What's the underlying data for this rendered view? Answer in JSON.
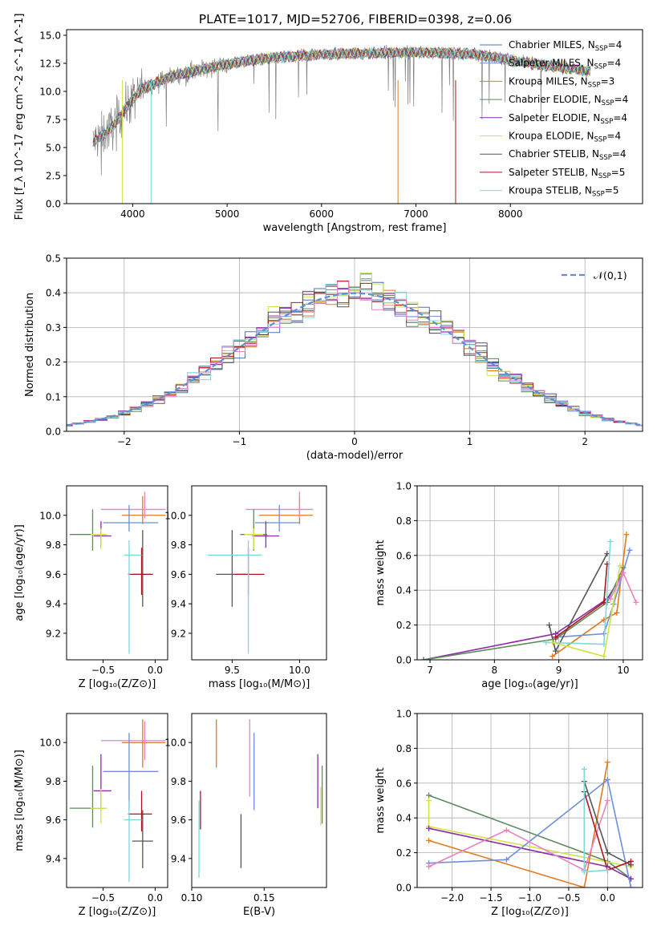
{
  "figure_title": "PLATE=1017, MJD=52706, FIBERID=0398, z=0.06",
  "colors": {
    "Chabrier MILES": "#4c72b0",
    "Salpeter MILES": "#6f8fdc",
    "Kroupa MILES": "#e07b1f",
    "Chabrier ELODIE": "#5b8a5b",
    "Salpeter ELODIE": "#8e2aa8",
    "Kroupa ELODIE": "#d2e34a",
    "Chabrier STELIB": "#555555",
    "Salpeter STELIB": "#b0151e",
    "Kroupa STELIB": "#7fd8dc",
    "pink": "#e982c0",
    "data": "#808080",
    "normal": "#5b8fd6"
  },
  "chart_data": [
    {
      "type": "line",
      "title": "PLATE=1017, MJD=52706, FIBERID=0398, z=0.06",
      "xlabel": "wavelength [Angstrom, rest frame]",
      "ylabel": "Flux [f_λ 10^-17 erg cm^-2 s^-1 A^-1]",
      "xlim": [
        3300,
        9400
      ],
      "ylim": [
        0,
        15.5
      ],
      "xticks": [
        4000,
        5000,
        6000,
        7000,
        8000
      ],
      "yticks": [
        "0.0",
        "2.5",
        "5.0",
        "7.5",
        "10.0",
        "12.5",
        "15.0"
      ],
      "grid": false,
      "legend_position": "right",
      "continuum": {
        "x": [
          3580,
          3700,
          3800,
          3900,
          4000,
          4100,
          4200,
          4400,
          4600,
          4800,
          5000,
          5200,
          5500,
          6000,
          6500,
          7000,
          7400,
          7600,
          7800,
          8000,
          8200,
          8400,
          8600,
          8850
        ],
        "y": [
          5.5,
          6.2,
          7.0,
          8.2,
          9.3,
          10.2,
          10.6,
          11.3,
          11.7,
          12.1,
          12.4,
          12.7,
          13.0,
          13.3,
          13.4,
          13.5,
          13.4,
          13.3,
          13.1,
          12.8,
          12.5,
          12.3,
          12.1,
          11.8
        ]
      },
      "series": [
        {
          "name": "Chabrier MILES",
          "nssp": 4
        },
        {
          "name": "Salpeter MILES",
          "nssp": 4
        },
        {
          "name": "Kroupa MILES",
          "nssp": 3
        },
        {
          "name": "Chabrier ELODIE",
          "nssp": 4
        },
        {
          "name": "Salpeter ELODIE",
          "nssp": 4
        },
        {
          "name": "Kroupa ELODIE",
          "nssp": 4
        },
        {
          "name": "Chabrier STELIB",
          "nssp": 4
        },
        {
          "name": "Salpeter STELIB",
          "nssp": 5
        },
        {
          "name": "Kroupa STELIB",
          "nssp": 5
        }
      ]
    },
    {
      "type": "line",
      "xlabel": "(data-model)/error",
      "ylabel": "Normed distribution",
      "xlim": [
        -2.5,
        2.5
      ],
      "ylim": [
        0,
        0.5
      ],
      "xticks": [
        "−2",
        "−1",
        "0",
        "1",
        "2"
      ],
      "yticks": [
        "0.0",
        "0.1",
        "0.2",
        "0.3",
        "0.4",
        "0.5"
      ],
      "grid": true,
      "legend_position": "top-right",
      "legend_label": "𝒩(0,1)",
      "bin_width": 0.1
    },
    {
      "type": "scatter",
      "xlabel": "Z [log₁₀(Z/Z⊙)]",
      "ylabel": "age  [log₁₀(age/yr)]",
      "xlim": [
        -0.85,
        0.12
      ],
      "ylim": [
        9.02,
        10.2
      ],
      "xticks": [
        -0.5,
        0.0
      ],
      "xtick_labels": [
        "−0.5",
        "0.0"
      ],
      "yticks": [
        9.2,
        9.4,
        9.6,
        9.8,
        10.0
      ],
      "ytick_labels": [
        "9.2",
        "9.4",
        "9.6",
        "9.8",
        "10.0"
      ],
      "points": [
        {
          "color": "Kroupa MILES",
          "x": -0.12,
          "y": 10.0,
          "xerr": [
            0.2,
            0.22
          ],
          "yerr": [
            0.06,
            0.13
          ]
        },
        {
          "color": "pink",
          "x": -0.1,
          "y": 10.04,
          "xerr": [
            0.42,
            0.2
          ],
          "yerr": [
            0.06,
            0.12
          ]
        },
        {
          "color": "Salpeter MILES",
          "x": -0.25,
          "y": 9.95,
          "xerr": [
            0.25,
            0.28
          ],
          "yerr": [
            0.06,
            0.12
          ]
        },
        {
          "color": "Chabrier ELODIE",
          "x": -0.6,
          "y": 9.87,
          "xerr": [
            0.22,
            0.12
          ],
          "yerr": [
            0.11,
            0.17
          ]
        },
        {
          "color": "Salpeter ELODIE",
          "x": -0.52,
          "y": 9.86,
          "xerr": [
            0.07,
            0.1
          ],
          "yerr": [
            0.08,
            0.1
          ]
        },
        {
          "color": "Kroupa ELODIE",
          "x": -0.52,
          "y": 9.87,
          "xerr": [
            0.1,
            0.06
          ],
          "yerr": [
            0.1,
            0.04
          ]
        },
        {
          "color": "Chabrier STELIB",
          "x": -0.12,
          "y": 9.6,
          "xerr": [
            0.1,
            0.1
          ],
          "yerr": [
            0.22,
            0.3
          ]
        },
        {
          "color": "Salpeter STELIB",
          "x": -0.13,
          "y": 9.6,
          "xerr": [
            0.13,
            0.1
          ],
          "yerr": [
            0.14,
            0.18
          ]
        },
        {
          "color": "Kroupa STELIB",
          "x": -0.25,
          "y": 9.73,
          "xerr": [
            0.05,
            0.12
          ],
          "yerr": [
            0.67,
            0.1
          ]
        }
      ]
    },
    {
      "type": "scatter",
      "xlabel": "mass [log₁₀(M/M⊙)]",
      "ylabel": "",
      "xlim": [
        9.2,
        10.2
      ],
      "ylim": [
        9.02,
        10.2
      ],
      "xticks": [
        9.5,
        10.0
      ],
      "xtick_labels": [
        "9.5",
        "10.0"
      ],
      "yticks": [
        9.2,
        9.4,
        9.6,
        9.8,
        10.0
      ],
      "ytick_labels": [
        "9.2",
        "9.4",
        "9.6",
        "9.8",
        "10.0"
      ],
      "points": [
        {
          "color": "Kroupa MILES",
          "x": 10.0,
          "y": 10.0,
          "xerr": [
            0.3,
            0.1
          ],
          "yerr": [
            0.06,
            0.13
          ]
        },
        {
          "color": "pink",
          "x": 10.0,
          "y": 10.04,
          "xerr": [
            0.4,
            0.1
          ],
          "yerr": [
            0.06,
            0.12
          ]
        },
        {
          "color": "Salpeter MILES",
          "x": 9.85,
          "y": 9.95,
          "xerr": [
            0.18,
            0.15
          ],
          "yerr": [
            0.06,
            0.12
          ]
        },
        {
          "color": "Chabrier ELODIE",
          "x": 9.66,
          "y": 9.87,
          "xerr": [
            0.1,
            0.1
          ],
          "yerr": [
            0.11,
            0.17
          ]
        },
        {
          "color": "Salpeter ELODIE",
          "x": 9.75,
          "y": 9.86,
          "xerr": [
            0.1,
            0.1
          ],
          "yerr": [
            0.08,
            0.1
          ]
        },
        {
          "color": "Kroupa ELODIE",
          "x": 9.66,
          "y": 9.87,
          "xerr": [
            0.07,
            0.07
          ],
          "yerr": [
            0.1,
            0.04
          ]
        },
        {
          "color": "Chabrier STELIB",
          "x": 9.5,
          "y": 9.6,
          "xerr": [
            0.12,
            0.12
          ],
          "yerr": [
            0.22,
            0.3
          ]
        },
        {
          "color": "Salpeter STELIB",
          "x": 9.62,
          "y": 9.6,
          "xerr": [
            0.1,
            0.12
          ],
          "yerr": [
            0.14,
            0.18
          ]
        },
        {
          "color": "Kroupa STELIB",
          "x": 9.62,
          "y": 9.73,
          "xerr": [
            0.3,
            0.1
          ],
          "yerr": [
            0.67,
            0.1
          ]
        }
      ]
    },
    {
      "type": "line",
      "xlabel": "age  [log₁₀(age/yr)]",
      "ylabel": "mass weight",
      "xlim": [
        6.8,
        10.3
      ],
      "ylim": [
        0,
        1
      ],
      "xticks": [
        7,
        8,
        9,
        10
      ],
      "xtick_labels": [
        "7",
        "8",
        "9",
        "10"
      ],
      "yticks": [
        0,
        0.2,
        0.4,
        0.6,
        0.8,
        1.0
      ],
      "ytick_labels": [
        "0.0",
        "0.2",
        "0.4",
        "0.6",
        "0.8",
        "1.0"
      ],
      "grid": true,
      "series": [
        {
          "color": "Salpeter ELODIE",
          "x": [
            6.9,
            8.95,
            9.75,
            10.0
          ],
          "y": [
            0.0,
            0.15,
            0.35,
            0.5
          ]
        },
        {
          "color": "Chabrier ELODIE",
          "x": [
            6.9,
            8.95,
            9.75,
            10.0
          ],
          "y": [
            0.0,
            0.12,
            0.33,
            0.53
          ]
        },
        {
          "color": "Kroupa MILES",
          "x": [
            8.9,
            9.7,
            9.9,
            10.05
          ],
          "y": [
            0.02,
            0.23,
            0.27,
            0.72
          ]
        },
        {
          "color": "Salpeter MILES",
          "x": [
            8.95,
            9.7,
            9.85,
            10.1
          ],
          "y": [
            0.13,
            0.15,
            0.32,
            0.63
          ]
        },
        {
          "color": "Chabrier STELIB",
          "x": [
            8.85,
            8.95,
            9.75
          ],
          "y": [
            0.2,
            0.05,
            0.61
          ]
        },
        {
          "color": "Salpeter STELIB",
          "x": [
            8.95,
            9.7,
            9.75
          ],
          "y": [
            0.13,
            0.33,
            0.55
          ]
        },
        {
          "color": "Kroupa STELIB",
          "x": [
            8.8,
            9.7,
            9.8
          ],
          "y": [
            0.1,
            0.09,
            0.68
          ]
        },
        {
          "color": "Kroupa ELODIE",
          "x": [
            8.9,
            9.7,
            9.95
          ],
          "y": [
            0.1,
            0.02,
            0.54
          ]
        },
        {
          "color": "pink",
          "x": [
            9.8,
            10.0,
            10.2
          ],
          "y": [
            0.35,
            0.5,
            0.33
          ]
        }
      ]
    },
    {
      "type": "scatter",
      "xlabel": "Z [log₁₀(Z/Z⊙)]",
      "ylabel": "mass [log₁₀(M/M⊙)]",
      "xlim": [
        -0.85,
        0.12
      ],
      "ylim": [
        9.25,
        10.15
      ],
      "xticks": [
        -0.5,
        0.0
      ],
      "xtick_labels": [
        "−0.5",
        "0.0"
      ],
      "yticks": [
        9.4,
        9.6,
        9.8,
        10.0
      ],
      "ytick_labels": [
        "9.4",
        "9.6",
        "9.8",
        "10.0"
      ],
      "points": [
        {
          "color": "Kroupa MILES",
          "x": -0.12,
          "y": 10.0,
          "xerr": [
            0.2,
            0.22
          ],
          "yerr": [
            0.13,
            0.12
          ]
        },
        {
          "color": "pink",
          "x": -0.1,
          "y": 10.01,
          "xerr": [
            0.42,
            0.2
          ],
          "yerr": [
            0.1,
            0.1
          ]
        },
        {
          "color": "Salpeter MILES",
          "x": -0.25,
          "y": 9.85,
          "xerr": [
            0.25,
            0.28
          ],
          "yerr": [
            0.2,
            0.2
          ]
        },
        {
          "color": "Chabrier ELODIE",
          "x": -0.6,
          "y": 9.66,
          "xerr": [
            0.22,
            0.12
          ],
          "yerr": [
            0.1,
            0.22
          ]
        },
        {
          "color": "Salpeter ELODIE",
          "x": -0.52,
          "y": 9.75,
          "xerr": [
            0.07,
            0.1
          ],
          "yerr": [
            0.1,
            0.19
          ]
        },
        {
          "color": "Kroupa ELODIE",
          "x": -0.52,
          "y": 9.66,
          "xerr": [
            0.1,
            0.06
          ],
          "yerr": [
            0.08,
            0.1
          ]
        },
        {
          "color": "Chabrier STELIB",
          "x": -0.12,
          "y": 9.49,
          "xerr": [
            0.1,
            0.1
          ],
          "yerr": [
            0.14,
            0.16
          ]
        },
        {
          "color": "Salpeter STELIB",
          "x": -0.13,
          "y": 9.63,
          "xerr": [
            0.13,
            0.1
          ],
          "yerr": [
            0.09,
            0.12
          ]
        },
        {
          "color": "Kroupa STELIB",
          "x": -0.25,
          "y": 9.6,
          "xerr": [
            0.05,
            0.12
          ],
          "yerr": [
            0.32,
            0.1
          ]
        }
      ]
    },
    {
      "type": "scatter",
      "xlabel": "E(B-V)",
      "ylabel": "",
      "xlim": [
        0.1,
        0.193
      ],
      "ylim": [
        9.25,
        10.15
      ],
      "xticks": [
        0.1,
        0.15
      ],
      "xtick_labels": [
        "0.10",
        "0.15"
      ],
      "yticks": [
        9.4,
        9.6,
        9.8,
        10.0
      ],
      "ytick_labels": [
        "9.4",
        "9.6",
        "9.8",
        "10.0"
      ],
      "points": [
        {
          "color": "Kroupa MILES",
          "x": 0.117,
          "y": 10.0,
          "yerr": [
            0.13,
            0.12
          ]
        },
        {
          "color": "pink",
          "x": 0.14,
          "y": 9.9,
          "yerr": [
            0.18,
            0.22
          ]
        },
        {
          "color": "Salpeter MILES",
          "x": 0.143,
          "y": 9.85,
          "yerr": [
            0.2,
            0.2
          ]
        },
        {
          "color": "Chabrier ELODIE",
          "x": 0.19,
          "y": 9.7,
          "yerr": [
            0.12,
            0.18
          ]
        },
        {
          "color": "Salpeter ELODIE",
          "x": 0.187,
          "y": 9.8,
          "yerr": [
            0.14,
            0.14
          ]
        },
        {
          "color": "Kroupa ELODIE",
          "x": 0.189,
          "y": 9.65,
          "yerr": [
            0.08,
            0.12
          ]
        },
        {
          "color": "Chabrier STELIB",
          "x": 0.134,
          "y": 9.49,
          "yerr": [
            0.14,
            0.14
          ]
        },
        {
          "color": "Salpeter STELIB",
          "x": 0.106,
          "y": 9.65,
          "yerr": [
            0.1,
            0.1
          ]
        },
        {
          "color": "Kroupa STELIB",
          "x": 0.105,
          "y": 9.5,
          "yerr": [
            0.2,
            0.2
          ]
        }
      ]
    },
    {
      "type": "line",
      "xlabel": "Z [log₁₀(Z/Z⊙)]",
      "ylabel": "mass weight",
      "xlim": [
        -2.45,
        0.45
      ],
      "ylim": [
        0,
        1
      ],
      "xticks": [
        -2.0,
        -1.5,
        -1.0,
        -0.5,
        0.0
      ],
      "xtick_labels": [
        "−2.0",
        "−1.5",
        "−1.0",
        "−0.5",
        "0.0"
      ],
      "yticks": [
        0,
        0.2,
        0.4,
        0.6,
        0.8,
        1.0
      ],
      "ytick_labels": [
        "0.0",
        "0.2",
        "0.4",
        "0.6",
        "0.8",
        "1.0"
      ],
      "grid": true,
      "series": [
        {
          "color": "Chabrier ELODIE",
          "x": [
            -2.3,
            0.0,
            0.3
          ],
          "y": [
            0.53,
            0.15,
            0.05
          ]
        },
        {
          "color": "Kroupa ELODIE",
          "x": [
            -2.3,
            -2.3,
            0.3
          ],
          "y": [
            0.5,
            0.35,
            0.12
          ]
        },
        {
          "color": "Salpeter ELODIE",
          "x": [
            -2.3,
            0.0,
            0.3
          ],
          "y": [
            0.34,
            0.12,
            0.05
          ]
        },
        {
          "color": "Kroupa MILES",
          "x": [
            -2.3,
            -0.3,
            0.0
          ],
          "y": [
            0.27,
            0.0,
            0.72
          ]
        },
        {
          "color": "Salpeter MILES",
          "x": [
            -2.3,
            -1.3,
            0.0,
            0.3
          ],
          "y": [
            0.14,
            0.16,
            0.62,
            0.0
          ]
        },
        {
          "color": "pink",
          "x": [
            -2.3,
            -1.3,
            -0.3,
            0.0
          ],
          "y": [
            0.12,
            0.33,
            0.1,
            0.5
          ]
        },
        {
          "color": "Chabrier STELIB",
          "x": [
            -0.3,
            0.0,
            0.3
          ],
          "y": [
            0.61,
            0.2,
            0.13
          ]
        },
        {
          "color": "Salpeter STELIB",
          "x": [
            -0.3,
            0.0,
            0.3
          ],
          "y": [
            0.55,
            0.1,
            0.15
          ]
        },
        {
          "color": "Kroupa STELIB",
          "x": [
            -0.3,
            -0.3,
            0.0
          ],
          "y": [
            0.68,
            0.09,
            0.1
          ]
        }
      ]
    }
  ]
}
